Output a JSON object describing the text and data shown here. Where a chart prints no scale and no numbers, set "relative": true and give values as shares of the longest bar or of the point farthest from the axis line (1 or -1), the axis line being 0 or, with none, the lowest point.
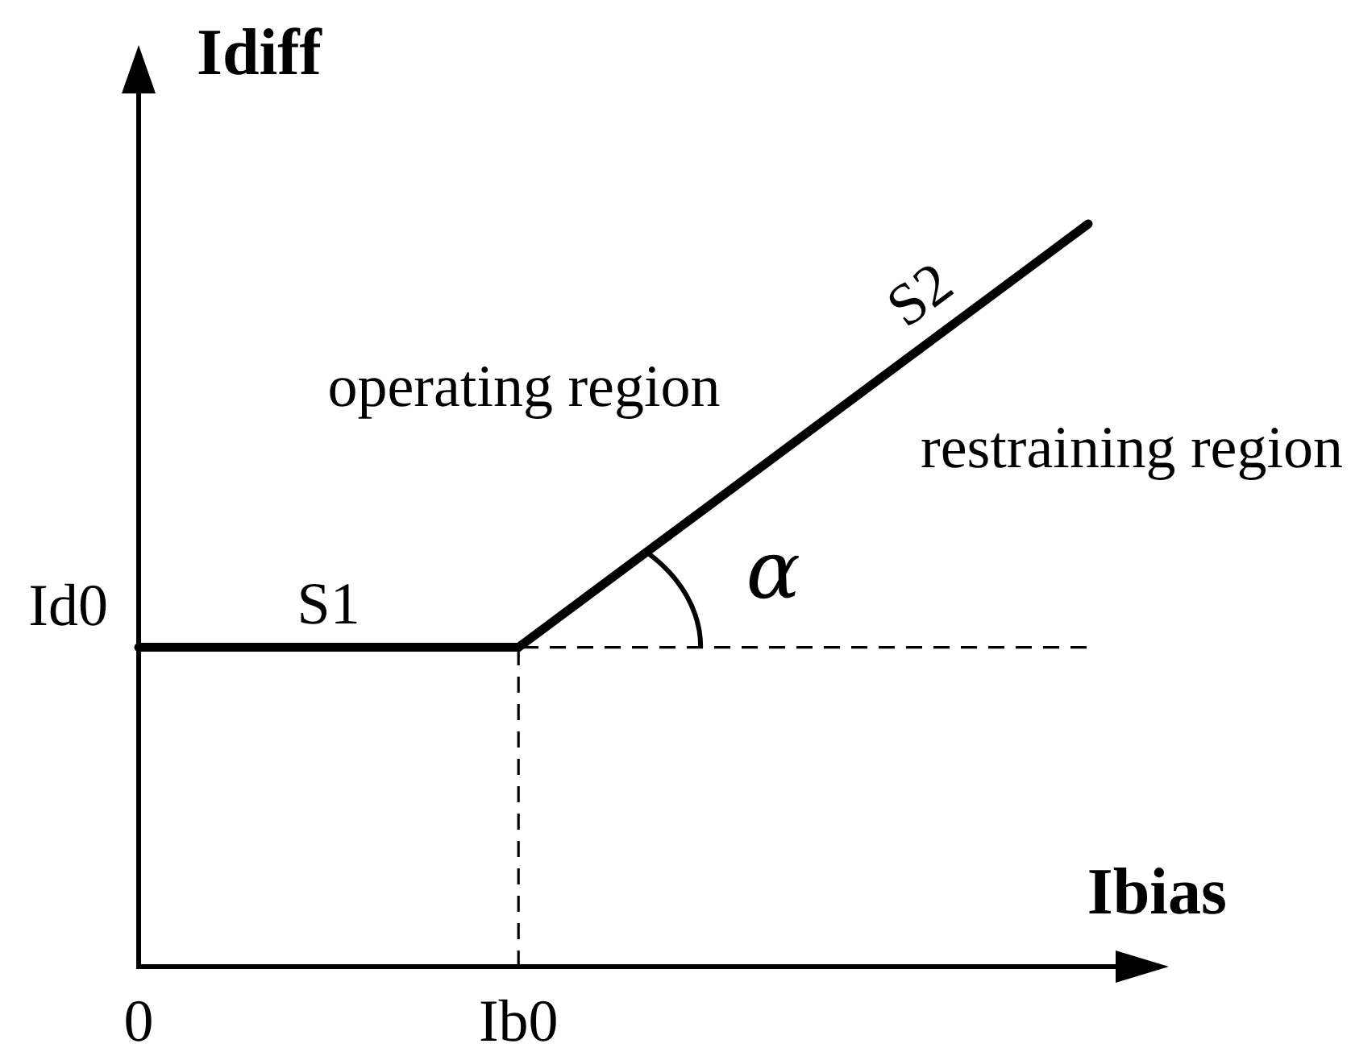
{
  "chart_data": {
    "type": "line",
    "xlabel": "Ibias",
    "ylabel": "Idiff",
    "relative": true,
    "line_style": "solid",
    "categories": [
      "0",
      null,
      "Ib0",
      null,
      null,
      null
    ],
    "series": [
      {
        "name": "S1",
        "color": "#000000",
        "values": [
          0.43,
          0.43,
          0.43,
          null,
          null,
          null
        ]
      },
      {
        "name": "S2",
        "color": "#000000",
        "values": [
          null,
          null,
          0.43,
          0.62,
          0.81,
          1
        ]
      },
      {
        "color": "#000000",
        "x": [
          "Ib0",
          "Ib0"
        ],
        "values": [
          0,
          0.43
        ],
        "line_style": "dashed"
      }
    ],
    "ref_lines": [
      {
        "axis": "y",
        "value": 0.43,
        "label": "Id0",
        "line_style": "dashed",
        "color": "#000000"
      }
    ],
    "annotations": [
      "operating region",
      "restraining region",
      {
        "text": "α",
        "x": "Ib0",
        "y": 0.43
      }
    ]
  }
}
